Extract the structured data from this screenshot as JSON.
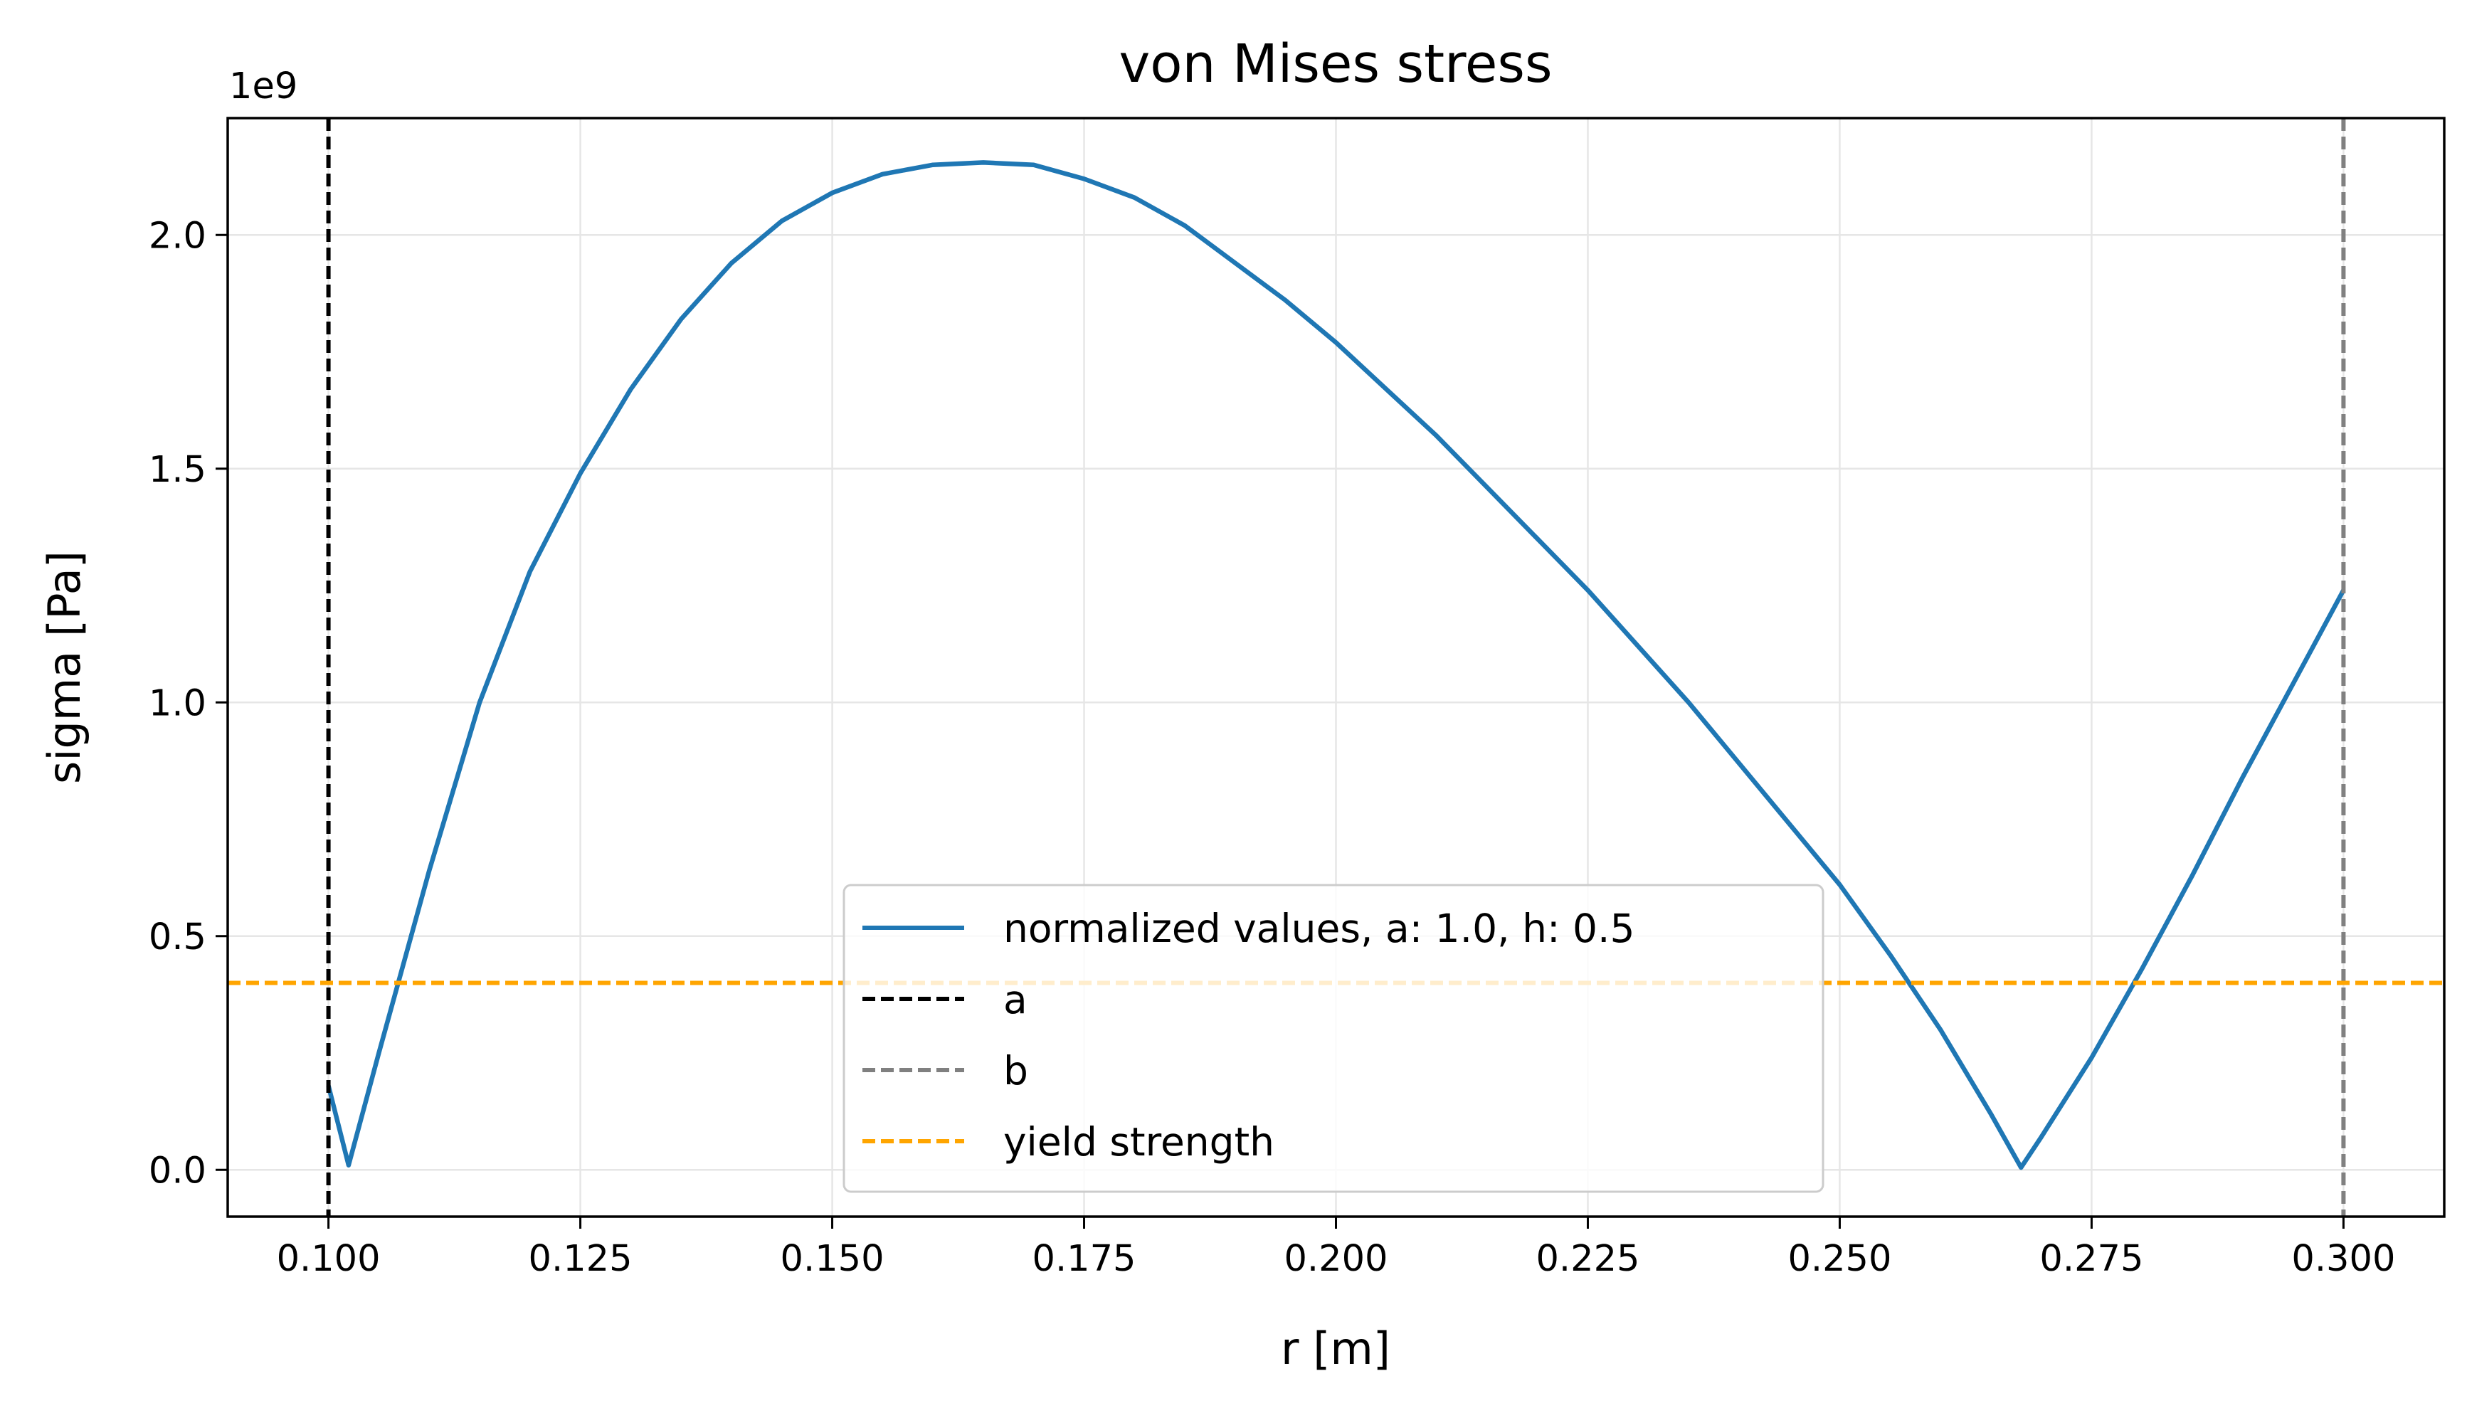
{
  "chart_data": {
    "type": "line",
    "title": "von Mises stress",
    "xlabel": "r [m]",
    "ylabel": "sigma [Pa]",
    "y_offset_label": "1e9",
    "xlim": [
      0.09,
      0.31
    ],
    "ylim": [
      -0.1,
      2.25
    ],
    "y_scale": 1000000000,
    "grid": true,
    "legend_position": "lower-center",
    "xticks": [
      0.1,
      0.125,
      0.15,
      0.175,
      0.2,
      0.225,
      0.25,
      0.275,
      0.3
    ],
    "xtick_labels": [
      "0.100",
      "0.125",
      "0.150",
      "0.175",
      "0.200",
      "0.225",
      "0.250",
      "0.275",
      "0.300"
    ],
    "yticks": [
      0.0,
      0.5,
      1.0,
      1.5,
      2.0
    ],
    "ytick_labels": [
      "0.0",
      "0.5",
      "1.0",
      "1.5",
      "2.0"
    ],
    "series": [
      {
        "name": "normalized values, a: 1.0, h: 0.5",
        "color": "#1f77b4",
        "style": "solid",
        "x": [
          0.1,
          0.102,
          0.105,
          0.11,
          0.115,
          0.12,
          0.125,
          0.13,
          0.135,
          0.14,
          0.145,
          0.15,
          0.155,
          0.16,
          0.165,
          0.17,
          0.175,
          0.18,
          0.185,
          0.19,
          0.195,
          0.2,
          0.205,
          0.21,
          0.215,
          0.22,
          0.225,
          0.23,
          0.235,
          0.24,
          0.245,
          0.25,
          0.255,
          0.26,
          0.265,
          0.268,
          0.27,
          0.275,
          0.28,
          0.285,
          0.29,
          0.295,
          0.3
        ],
        "y": [
          0.18,
          0.01,
          0.25,
          0.64,
          1.0,
          1.28,
          1.49,
          1.67,
          1.82,
          1.94,
          2.03,
          2.09,
          2.13,
          2.15,
          2.155,
          2.15,
          2.12,
          2.08,
          2.02,
          1.94,
          1.86,
          1.77,
          1.67,
          1.57,
          1.46,
          1.35,
          1.24,
          1.12,
          1.0,
          0.87,
          0.74,
          0.61,
          0.46,
          0.3,
          0.12,
          0.005,
          0.07,
          0.24,
          0.43,
          0.63,
          0.84,
          1.04,
          1.24
        ]
      },
      {
        "name": "a",
        "color": "#000000",
        "style": "dashed",
        "orientation": "vertical",
        "x_value": 0.1
      },
      {
        "name": "b",
        "color": "#808080",
        "style": "dashed",
        "orientation": "vertical",
        "x_value": 0.3
      },
      {
        "name": "yield strength",
        "color": "#ffa500",
        "style": "dashed",
        "orientation": "horizontal",
        "y_value": 0.4
      }
    ]
  }
}
